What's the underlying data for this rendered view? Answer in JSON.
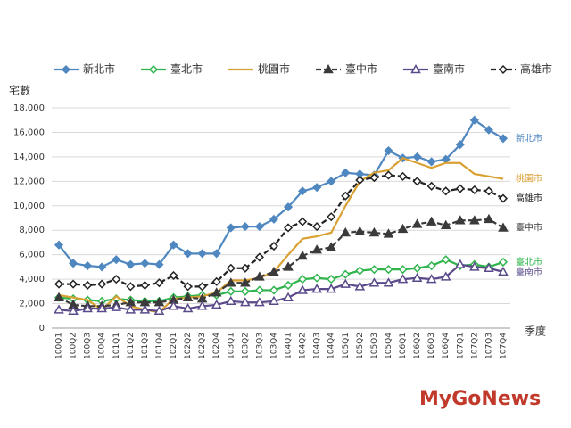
{
  "chart_data": {
    "type": "line",
    "y_label": "宅數",
    "x_label": "季度",
    "watermark": "MyGoNews",
    "categories": [
      "100Q1",
      "100Q2",
      "100Q3",
      "100Q4",
      "101Q1",
      "101Q2",
      "101Q3",
      "101Q4",
      "102Q1",
      "102Q2",
      "102Q3",
      "102Q4",
      "103Q1",
      "103Q2",
      "103Q3",
      "103Q4",
      "104Q1",
      "104Q2",
      "104Q3",
      "104Q4",
      "105Q1",
      "105Q2",
      "105Q3",
      "105Q4",
      "106Q1",
      "106Q2",
      "106Q3",
      "106Q4",
      "107Q1",
      "107Q2",
      "107Q3",
      "107Q4"
    ],
    "series": [
      {
        "name": "新北市",
        "color": "#4f87c0",
        "marker": "diamond-filled",
        "dashed": false,
        "values": [
          6800,
          5300,
          5100,
          5000,
          5600,
          5200,
          5300,
          5200,
          6800,
          6100,
          6100,
          6100,
          8200,
          8300,
          8300,
          8900,
          9900,
          11200,
          11500,
          12000,
          12700,
          12600,
          12500,
          14500,
          13900,
          14000,
          13600,
          13800,
          15000,
          17000,
          16200,
          15500
        ]
      },
      {
        "name": "臺北市",
        "color": "#2fb44c",
        "marker": "diamond-open",
        "dashed": false,
        "values": [
          2500,
          2400,
          2300,
          2200,
          2400,
          2300,
          2200,
          2200,
          2500,
          2600,
          2700,
          2700,
          3000,
          3000,
          3100,
          3100,
          3500,
          4000,
          4100,
          4000,
          4400,
          4700,
          4800,
          4800,
          4800,
          4900,
          5100,
          5600,
          5100,
          5200,
          5000,
          5400
        ]
      },
      {
        "name": "桃園市",
        "color": "#d9a032",
        "marker": "none",
        "dashed": false,
        "values": [
          2700,
          2500,
          2300,
          1500,
          2600,
          1800,
          1500,
          1300,
          2400,
          2500,
          2600,
          2900,
          3900,
          3900,
          4100,
          4600,
          6000,
          7300,
          7500,
          7800,
          10000,
          12000,
          12700,
          12900,
          13900,
          13500,
          13100,
          13500,
          13500,
          12600,
          12400,
          12200
        ]
      },
      {
        "name": "臺中市",
        "color": "#3a3a3a",
        "marker": "triangle-filled",
        "dashed": true,
        "values": [
          2500,
          1900,
          1800,
          1800,
          1900,
          2100,
          2100,
          2100,
          2300,
          2500,
          2400,
          2900,
          3700,
          3700,
          4200,
          4600,
          5000,
          5900,
          6400,
          6600,
          7800,
          7900,
          7800,
          7700,
          8100,
          8500,
          8700,
          8400,
          8800,
          8800,
          8900,
          8200
        ]
      },
      {
        "name": "臺南市",
        "color": "#5a4a8a",
        "marker": "triangle-open",
        "dashed": false,
        "values": [
          1500,
          1400,
          1600,
          1600,
          1700,
          1500,
          1500,
          1400,
          1800,
          1600,
          1800,
          1900,
          2200,
          2100,
          2100,
          2200,
          2500,
          3100,
          3200,
          3200,
          3600,
          3400,
          3700,
          3700,
          4000,
          4100,
          4000,
          4200,
          5200,
          5000,
          4900,
          4600
        ]
      },
      {
        "name": "高雄市",
        "color": "#222222",
        "marker": "diamond-open",
        "dashed": true,
        "values": [
          3600,
          3600,
          3500,
          3600,
          4000,
          3400,
          3500,
          3700,
          4300,
          3400,
          3400,
          3800,
          4900,
          4900,
          5800,
          6700,
          8200,
          8700,
          8300,
          9100,
          10800,
          12100,
          12300,
          12500,
          12400,
          12000,
          11600,
          11200,
          11400,
          11300,
          11200,
          10600
        ]
      }
    ],
    "ylim": [
      0,
      18000
    ],
    "yticks": [
      0,
      {
        "value": 2000,
        "label": "2,000"
      },
      {
        "value": 4000,
        "label": "4,000"
      },
      {
        "value": 6000,
        "label": "6,000"
      },
      {
        "value": 8000,
        "label": "8,000"
      },
      {
        "value": 10000,
        "label": "10,000"
      },
      {
        "value": 12000,
        "label": "12,000"
      },
      {
        "value": 14000,
        "label": "14,000"
      },
      {
        "value": 16000,
        "label": "16,000"
      },
      {
        "value": 18000,
        "label": "18,000"
      }
    ],
    "grid": true,
    "legend": "top"
  }
}
